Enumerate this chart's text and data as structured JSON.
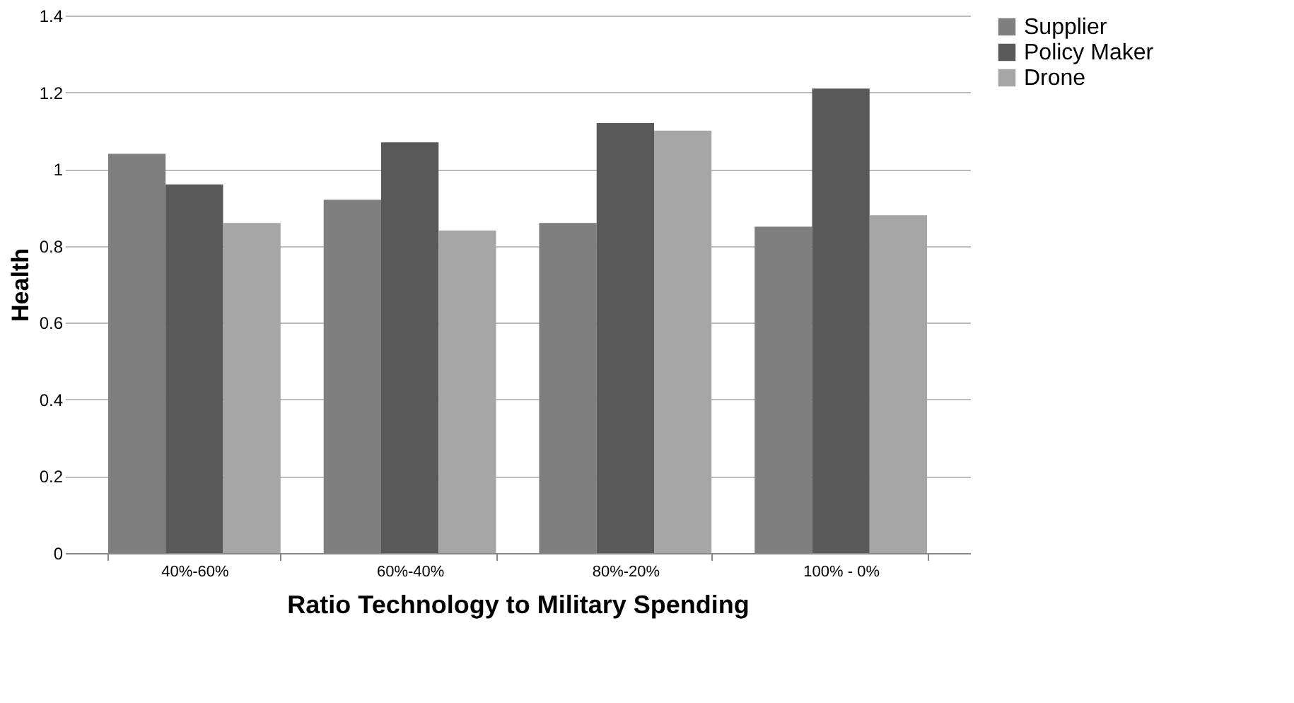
{
  "chart_data": {
    "type": "bar",
    "xlabel": "Ratio Technology to Military Spending",
    "ylabel": "Health",
    "categories": [
      "40%-60%",
      "60%-40%",
      "80%-20%",
      "100% - 0%"
    ],
    "series": [
      {
        "name": "Supplier",
        "color": "#7f7f7f",
        "values": [
          1.04,
          0.92,
          0.86,
          0.85
        ]
      },
      {
        "name": "Policy Maker",
        "color": "#595959",
        "values": [
          0.96,
          1.07,
          1.12,
          1.21
        ]
      },
      {
        "name": "Drone",
        "color": "#a6a6a6",
        "values": [
          0.86,
          0.84,
          1.1,
          0.88
        ]
      }
    ],
    "ylim": [
      0,
      1.4
    ],
    "yticks": [
      0,
      0.2,
      0.4,
      0.6,
      0.8,
      1,
      1.2,
      1.4
    ],
    "grid": "y",
    "legend": "right"
  }
}
